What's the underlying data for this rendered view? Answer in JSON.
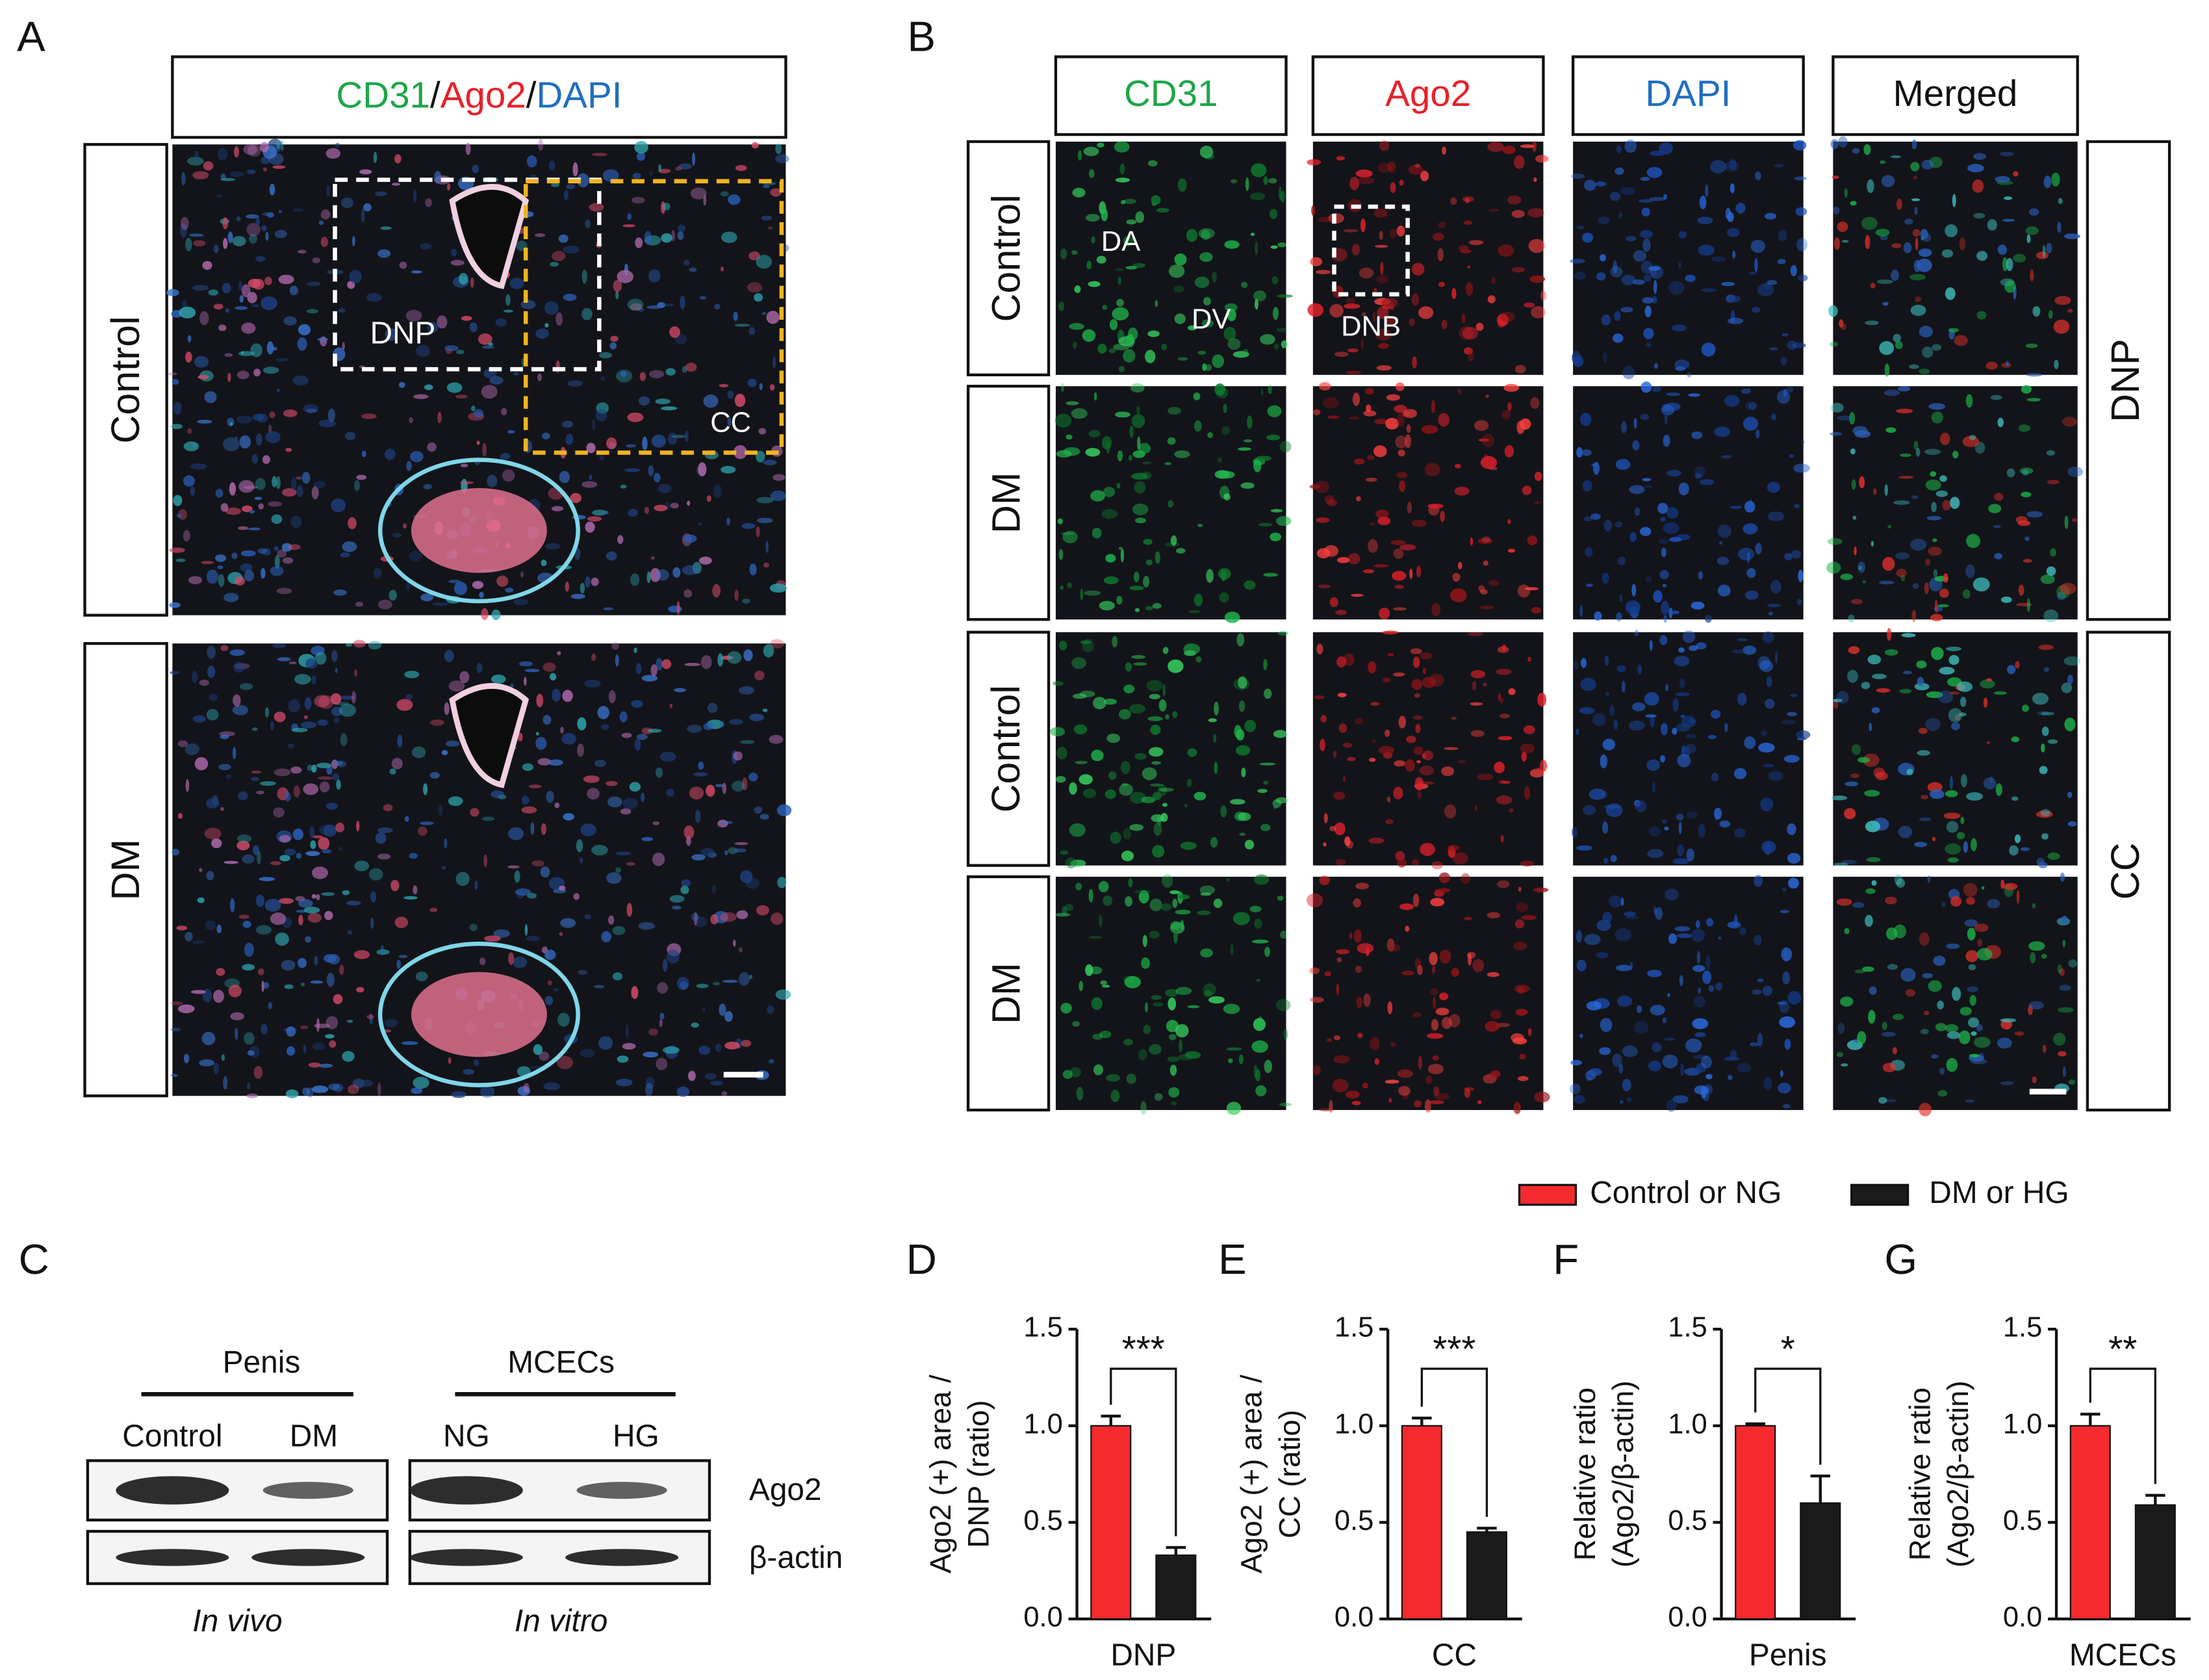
{
  "panel_labels": {
    "a": "A",
    "b": "B",
    "c": "C"
  },
  "panel_a": {
    "header": [
      {
        "text": "CD31",
        "color": "#1fa54a"
      },
      {
        "text": "/",
        "color": "#111111"
      },
      {
        "text": "Ago2",
        "color": "#e8202a"
      },
      {
        "text": "/",
        "color": "#111111"
      },
      {
        "text": "DAPI",
        "color": "#1f6fc0"
      }
    ],
    "rows": [
      "Control",
      "DM"
    ],
    "annotations": [
      "DNP",
      "CC"
    ]
  },
  "panel_b": {
    "columns": [
      {
        "text": "CD31",
        "color": "#1fa54a"
      },
      {
        "text": "Ago2",
        "color": "#e8202a"
      },
      {
        "text": "DAPI",
        "color": "#1f6fc0"
      },
      {
        "text": "Merged",
        "color": "#111111"
      }
    ],
    "rows": [
      "Control",
      "DM",
      "Control",
      "DM"
    ],
    "groups": [
      "DNP",
      "CC"
    ],
    "annotations": [
      "DA",
      "DV",
      "DNB"
    ]
  },
  "panel_c": {
    "groups": [
      "Penis",
      "MCECs"
    ],
    "lanes": [
      "Control",
      "DM",
      "NG",
      "HG"
    ],
    "bands": [
      "Ago2",
      "β-actin"
    ],
    "conditions": [
      "In vivo",
      "In vitro"
    ]
  },
  "legend": [
    {
      "name": "Control or NG",
      "color": "#f42a2f"
    },
    {
      "name": "DM or HG",
      "color": "#1a1a1a"
    }
  ],
  "chart_data": [
    {
      "type": "bar",
      "panel_label": "D",
      "ylabel": [
        "Ago2 (+) area /",
        "DNP (ratio)"
      ],
      "xlabel": "DNP",
      "values": [
        1.0,
        0.33
      ],
      "errors": [
        0.05,
        0.04
      ],
      "significance": "***",
      "ylim": [
        0,
        1.5
      ],
      "yticks": [
        {
          "value": 0,
          "label": "0.0"
        },
        0.5,
        {
          "value": 1,
          "label": "1.0"
        },
        1.5
      ]
    },
    {
      "type": "bar",
      "panel_label": "E",
      "ylabel": [
        "Ago2 (+) area /",
        "CC (ratio)"
      ],
      "xlabel": "CC",
      "values": [
        1.0,
        0.45
      ],
      "errors": [
        0.04,
        0.02
      ],
      "significance": "***",
      "ylim": [
        0,
        1.5
      ],
      "yticks": [
        {
          "value": 0,
          "label": "0.0"
        },
        0.5,
        {
          "value": 1,
          "label": "1.0"
        },
        1.5
      ]
    },
    {
      "type": "bar",
      "panel_label": "F",
      "ylabel": [
        "Relative ratio",
        "(Ago2/β-actin)"
      ],
      "xlabel": "Penis",
      "values": [
        1.0,
        0.6
      ],
      "errors": [
        0.01,
        0.14
      ],
      "significance": "*",
      "ylim": [
        0,
        1.5
      ],
      "yticks": [
        {
          "value": 0,
          "label": "0.0"
        },
        0.5,
        {
          "value": 1,
          "label": "1.0"
        },
        1.5
      ]
    },
    {
      "type": "bar",
      "panel_label": "G",
      "ylabel": [
        "Relative ratio",
        "(Ago2/β-actin)"
      ],
      "xlabel": "MCECs",
      "values": [
        1.0,
        0.59
      ],
      "errors": [
        0.06,
        0.05
      ],
      "significance": "**",
      "ylim": [
        0,
        1.5
      ],
      "yticks": [
        {
          "value": 0,
          "label": "0.0"
        },
        0.5,
        {
          "value": 1,
          "label": "1.0"
        },
        1.5
      ]
    }
  ]
}
